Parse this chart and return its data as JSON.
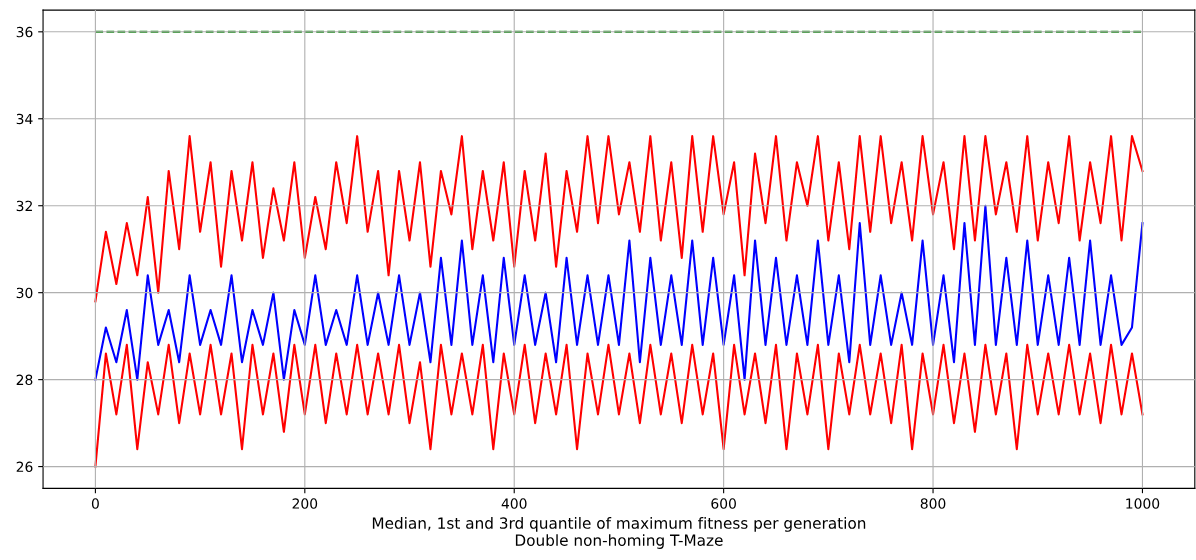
{
  "chart_data": {
    "type": "line",
    "xlabel": "Median, 1st and 3rd quantile of maximum fitness per generation\nDouble non-homing T-Maze",
    "x": [
      0,
      10,
      20,
      30,
      40,
      50,
      60,
      70,
      80,
      90,
      100,
      110,
      120,
      130,
      140,
      150,
      160,
      170,
      180,
      190,
      200,
      210,
      220,
      230,
      240,
      250,
      260,
      270,
      280,
      290,
      300,
      310,
      320,
      330,
      340,
      350,
      360,
      370,
      380,
      390,
      400,
      410,
      420,
      430,
      440,
      450,
      460,
      470,
      480,
      490,
      500,
      510,
      520,
      530,
      540,
      550,
      560,
      570,
      580,
      590,
      600,
      610,
      620,
      630,
      640,
      650,
      660,
      670,
      680,
      690,
      700,
      710,
      720,
      730,
      740,
      750,
      760,
      770,
      780,
      790,
      800,
      810,
      820,
      830,
      840,
      850,
      860,
      870,
      880,
      890,
      900,
      910,
      920,
      930,
      940,
      950,
      960,
      970,
      980,
      990,
      1000
    ],
    "series": [
      {
        "color": "#ff0000",
        "values": [
          29.8,
          31.4,
          30.2,
          31.6,
          30.4,
          32.2,
          30.0,
          32.8,
          31.0,
          33.6,
          31.4,
          33.0,
          30.6,
          32.8,
          31.2,
          33.0,
          30.8,
          32.4,
          31.2,
          33.0,
          30.8,
          32.2,
          31.0,
          33.0,
          31.6,
          33.6,
          31.4,
          32.8,
          30.4,
          32.8,
          31.2,
          33.0,
          30.6,
          32.8,
          31.8,
          33.6,
          31.0,
          32.8,
          31.2,
          33.0,
          30.6,
          32.8,
          31.2,
          33.2,
          30.6,
          32.8,
          31.4,
          33.6,
          31.6,
          33.6,
          31.8,
          33.0,
          31.4,
          33.6,
          31.2,
          33.0,
          30.8,
          33.6,
          31.4,
          33.6,
          31.8,
          33.0,
          30.4,
          33.2,
          31.6,
          33.6,
          31.2,
          33.0,
          32.0,
          33.6,
          31.2,
          33.0,
          31.0,
          33.6,
          31.4,
          33.6,
          31.6,
          33.0,
          31.2,
          33.6,
          31.8,
          33.0,
          31.0,
          33.6,
          31.2,
          33.6,
          31.8,
          33.0,
          31.4,
          33.6,
          31.2,
          33.0,
          31.6,
          33.6,
          31.2,
          33.0,
          31.6,
          33.6,
          31.2,
          33.6,
          32.8
        ]
      },
      {
        "color": "#ff0000",
        "values": [
          26.0,
          28.6,
          27.2,
          28.8,
          26.4,
          28.4,
          27.2,
          28.8,
          27.0,
          28.6,
          27.2,
          28.8,
          27.2,
          28.6,
          26.4,
          28.8,
          27.2,
          28.6,
          26.8,
          28.8,
          27.2,
          28.8,
          27.0,
          28.6,
          27.2,
          28.8,
          27.2,
          28.6,
          27.2,
          28.8,
          27.0,
          28.4,
          26.4,
          28.8,
          27.2,
          28.6,
          27.2,
          28.8,
          26.4,
          28.6,
          27.2,
          28.8,
          27.0,
          28.6,
          27.2,
          28.8,
          26.4,
          28.6,
          27.2,
          28.8,
          27.2,
          28.6,
          27.0,
          28.8,
          27.2,
          28.6,
          27.0,
          28.8,
          27.2,
          28.6,
          26.4,
          28.8,
          27.2,
          28.6,
          27.0,
          28.8,
          26.4,
          28.6,
          27.2,
          28.8,
          26.4,
          28.6,
          27.2,
          28.8,
          27.2,
          28.6,
          27.0,
          28.8,
          26.4,
          28.6,
          27.2,
          28.8,
          27.0,
          28.6,
          26.8,
          28.8,
          27.2,
          28.6,
          26.4,
          28.8,
          27.2,
          28.6,
          27.2,
          28.8,
          27.2,
          28.6,
          27.0,
          28.8,
          27.2,
          28.6,
          27.2
        ]
      },
      {
        "color": "#0000ff",
        "values": [
          28.0,
          29.2,
          28.4,
          29.6,
          28.0,
          30.4,
          28.8,
          29.6,
          28.4,
          30.4,
          28.8,
          29.6,
          28.8,
          30.4,
          28.4,
          29.6,
          28.8,
          30.0,
          28.0,
          29.6,
          28.8,
          30.4,
          28.8,
          29.6,
          28.8,
          30.4,
          28.8,
          30.0,
          28.8,
          30.4,
          28.8,
          30.0,
          28.4,
          30.8,
          28.8,
          31.2,
          28.8,
          30.4,
          28.4,
          30.8,
          28.8,
          30.4,
          28.8,
          30.0,
          28.4,
          30.8,
          28.8,
          30.4,
          28.8,
          30.4,
          28.8,
          31.2,
          28.4,
          30.8,
          28.8,
          30.4,
          28.8,
          31.2,
          28.8,
          30.8,
          28.8,
          30.4,
          28.0,
          31.2,
          28.8,
          30.8,
          28.8,
          30.4,
          28.8,
          31.2,
          28.8,
          30.4,
          28.4,
          31.6,
          28.8,
          30.4,
          28.8,
          30.0,
          28.8,
          31.2,
          28.8,
          30.4,
          28.4,
          31.6,
          28.8,
          32.0,
          28.8,
          30.8,
          28.8,
          31.2,
          28.8,
          30.4,
          28.8,
          30.8,
          28.8,
          31.2,
          28.8,
          30.4,
          28.8,
          29.2,
          31.6
        ]
      },
      {
        "color": "#008000",
        "line_style": "dashed",
        "x": [
          0,
          1000
        ],
        "values": [
          36,
          36
        ]
      }
    ],
    "xlim": [
      -50,
      1050
    ],
    "ylim": [
      25.5,
      36.5
    ],
    "xticks": [
      0,
      200,
      400,
      600,
      800,
      1000
    ],
    "yticks": [
      26,
      28,
      30,
      32,
      34,
      36
    ],
    "grid": true
  }
}
